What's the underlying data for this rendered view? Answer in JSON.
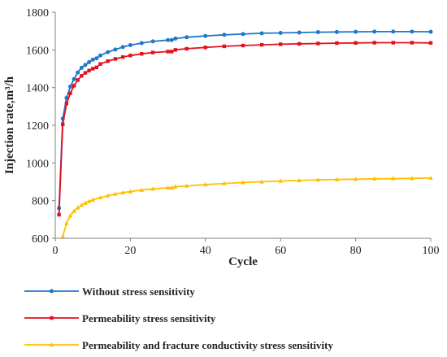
{
  "chart_data": {
    "type": "line",
    "xlabel": "Cycle",
    "ylabel": "Injection rate,m³/h",
    "xlim": [
      0,
      100
    ],
    "ylim": [
      600,
      1800
    ],
    "xticks": [
      0,
      20,
      40,
      60,
      80,
      100
    ],
    "yticks": [
      600,
      800,
      1000,
      1200,
      1400,
      1600,
      1800
    ],
    "grid": false,
    "legend_position": "bottom",
    "series": [
      {
        "name": "Without stress sensitivity",
        "color": "#1F78C8",
        "marker": "circle",
        "points": [
          [
            1,
            760
          ],
          [
            2,
            1235
          ],
          [
            3,
            1345
          ],
          [
            4,
            1405
          ],
          [
            5,
            1445
          ],
          [
            6,
            1480
          ],
          [
            7,
            1505
          ],
          [
            8,
            1520
          ],
          [
            9,
            1535
          ],
          [
            10,
            1548
          ],
          [
            11,
            1555
          ],
          [
            12,
            1570
          ],
          [
            14,
            1588
          ],
          [
            16,
            1602
          ],
          [
            18,
            1615
          ],
          [
            20,
            1625
          ],
          [
            23,
            1636
          ],
          [
            26,
            1645
          ],
          [
            30,
            1652
          ],
          [
            31,
            1652
          ],
          [
            32,
            1660
          ],
          [
            35,
            1667
          ],
          [
            40,
            1674
          ],
          [
            45,
            1680
          ],
          [
            50,
            1684
          ],
          [
            55,
            1688
          ],
          [
            60,
            1690
          ],
          [
            65,
            1692
          ],
          [
            70,
            1694
          ],
          [
            75,
            1695
          ],
          [
            80,
            1696
          ],
          [
            85,
            1697
          ],
          [
            90,
            1697
          ],
          [
            95,
            1697
          ],
          [
            100,
            1696
          ]
        ]
      },
      {
        "name": "Permeability stress sensitivity",
        "color": "#E3101E",
        "marker": "square",
        "points": [
          [
            1,
            725
          ],
          [
            2,
            1205
          ],
          [
            3,
            1315
          ],
          [
            4,
            1370
          ],
          [
            5,
            1410
          ],
          [
            6,
            1440
          ],
          [
            7,
            1462
          ],
          [
            8,
            1478
          ],
          [
            9,
            1490
          ],
          [
            10,
            1500
          ],
          [
            11,
            1507
          ],
          [
            12,
            1525
          ],
          [
            14,
            1540
          ],
          [
            16,
            1552
          ],
          [
            18,
            1562
          ],
          [
            20,
            1570
          ],
          [
            23,
            1579
          ],
          [
            26,
            1586
          ],
          [
            30,
            1591
          ],
          [
            31,
            1591
          ],
          [
            32,
            1600
          ],
          [
            35,
            1606
          ],
          [
            40,
            1613
          ],
          [
            45,
            1619
          ],
          [
            50,
            1623
          ],
          [
            55,
            1627
          ],
          [
            60,
            1630
          ],
          [
            65,
            1632
          ],
          [
            70,
            1634
          ],
          [
            75,
            1636
          ],
          [
            80,
            1637
          ],
          [
            85,
            1638
          ],
          [
            90,
            1638
          ],
          [
            95,
            1638
          ],
          [
            100,
            1637
          ]
        ]
      },
      {
        "name": "Permeability and fracture conductivity stress sensitivity",
        "color": "#FFC000",
        "marker": "triangle",
        "points": [
          [
            2,
            610
          ],
          [
            3,
            680
          ],
          [
            4,
            720
          ],
          [
            5,
            745
          ],
          [
            6,
            763
          ],
          [
            7,
            776
          ],
          [
            8,
            787
          ],
          [
            9,
            796
          ],
          [
            10,
            804
          ],
          [
            12,
            816
          ],
          [
            14,
            826
          ],
          [
            16,
            835
          ],
          [
            18,
            842
          ],
          [
            20,
            848
          ],
          [
            23,
            856
          ],
          [
            26,
            862
          ],
          [
            30,
            868
          ],
          [
            31,
            868
          ],
          [
            32,
            874
          ],
          [
            35,
            878
          ],
          [
            40,
            885
          ],
          [
            45,
            891
          ],
          [
            50,
            896
          ],
          [
            55,
            900
          ],
          [
            60,
            904
          ],
          [
            65,
            907
          ],
          [
            70,
            910
          ],
          [
            75,
            912
          ],
          [
            80,
            914
          ],
          [
            85,
            916
          ],
          [
            90,
            917
          ],
          [
            95,
            918
          ],
          [
            100,
            920
          ]
        ]
      }
    ]
  }
}
